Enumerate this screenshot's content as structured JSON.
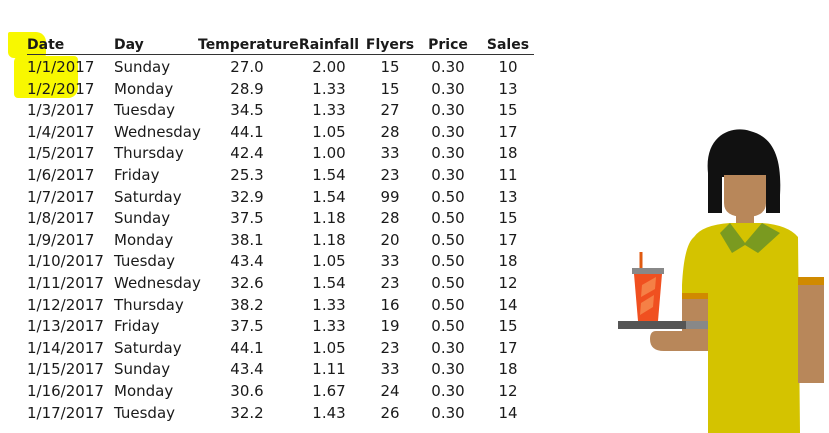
{
  "table": {
    "headers": [
      "Date",
      "Day",
      "Temperature",
      "Rainfall",
      "Flyers",
      "Price",
      "Sales"
    ],
    "highlight_color": "#f8f800",
    "rows": [
      [
        "1/1/2017",
        "Sunday",
        "27.0",
        "2.00",
        "15",
        "0.30",
        "10"
      ],
      [
        "1/2/2017",
        "Monday",
        "28.9",
        "1.33",
        "15",
        "0.30",
        "13"
      ],
      [
        "1/3/2017",
        "Tuesday",
        "34.5",
        "1.33",
        "27",
        "0.30",
        "15"
      ],
      [
        "1/4/2017",
        "Wednesday",
        "44.1",
        "1.05",
        "28",
        "0.30",
        "17"
      ],
      [
        "1/5/2017",
        "Thursday",
        "42.4",
        "1.00",
        "33",
        "0.30",
        "18"
      ],
      [
        "1/6/2017",
        "Friday",
        "25.3",
        "1.54",
        "23",
        "0.30",
        "11"
      ],
      [
        "1/7/2017",
        "Saturday",
        "32.9",
        "1.54",
        "99",
        "0.50",
        "13"
      ],
      [
        "1/8/2017",
        "Sunday",
        "37.5",
        "1.18",
        "28",
        "0.50",
        "15"
      ],
      [
        "1/9/2017",
        "Monday",
        "38.1",
        "1.18",
        "20",
        "0.50",
        "17"
      ],
      [
        "1/10/2017",
        "Tuesday",
        "43.4",
        "1.05",
        "33",
        "0.50",
        "18"
      ],
      [
        "1/11/2017",
        "Wednesday",
        "32.6",
        "1.54",
        "23",
        "0.50",
        "12"
      ],
      [
        "1/12/2017",
        "Thursday",
        "38.2",
        "1.33",
        "16",
        "0.50",
        "14"
      ],
      [
        "1/13/2017",
        "Friday",
        "37.5",
        "1.33",
        "19",
        "0.50",
        "15"
      ],
      [
        "1/14/2017",
        "Saturday",
        "44.1",
        "1.05",
        "23",
        "0.30",
        "17"
      ],
      [
        "1/15/2017",
        "Sunday",
        "43.4",
        "1.11",
        "33",
        "0.30",
        "18"
      ],
      [
        "1/16/2017",
        "Monday",
        "30.6",
        "1.67",
        "24",
        "0.30",
        "12"
      ],
      [
        "1/17/2017",
        "Tuesday",
        "32.2",
        "1.43",
        "26",
        "0.30",
        "14"
      ]
    ]
  },
  "illustration": {
    "icon": "server-with-drink-tray-illustration",
    "colors": {
      "hair": "#111111",
      "skin": "#b8875a",
      "shirt": "#d4c300",
      "collar": "#7a9a20",
      "cup": "#f05020",
      "tray": "#555555"
    }
  }
}
